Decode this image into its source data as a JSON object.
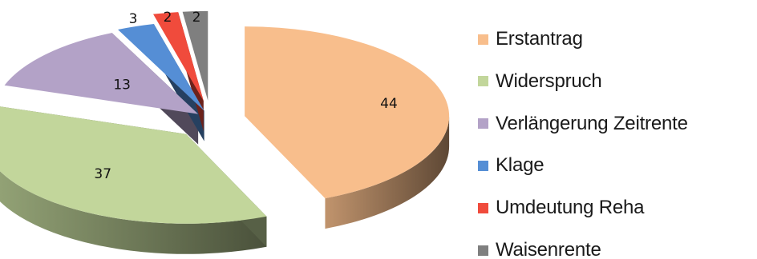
{
  "chart_data": {
    "type": "pie",
    "style": "3d-exploded",
    "categories": [
      "Erstantrag",
      "Widerspruch",
      "Verlängerung  Zeitrente",
      "Klage",
      "Umdeutung Reha",
      "Waisenrente"
    ],
    "values": [
      44,
      37,
      13,
      3,
      2,
      2
    ],
    "data_labels": [
      "44",
      "37",
      "13",
      "3",
      "2",
      "2"
    ],
    "colors": [
      "#F8BE8C",
      "#C2D69B",
      "#B3A2C7",
      "#558ED5",
      "#F04B3C",
      "#7F7F7F"
    ],
    "legend_position": "right"
  }
}
